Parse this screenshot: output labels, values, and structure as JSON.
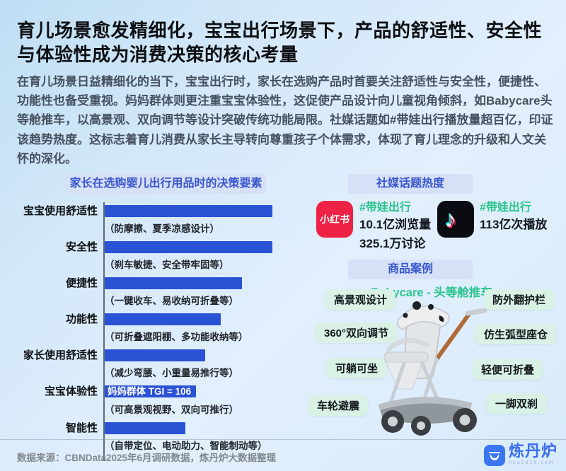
{
  "page": {
    "title": "育儿场景愈发精细化，宝宝出行场景下，产品的舒适性、安全性与体验性成为消费决策的核心考量",
    "intro": "在育儿场景日益精细化的当下，宝宝出行时，家长在选购产品时首要关注舒适性与安全性，便捷性、功能性也备受重视。妈妈群体则更注重宝宝体验性，这促使产品设计向儿童视角倾斜，如Babycare头等舱推车，以高景观、双向调节等设计突破传统功能局限。社媒话题如#带娃出行播放量超百亿，印证该趋势热度。这标志着育儿消费从家长主导转向尊重孩子个体需求，体现了育儿理念的升级和人文关怀的深化。"
  },
  "chart_data": {
    "type": "bar",
    "orientation": "horizontal",
    "title": "家长在选购婴儿出行用品时的决策要素",
    "categories": [
      "宝宝使用舒适性",
      "安全性",
      "便捷性",
      "功能性",
      "家长使用舒适性",
      "宝宝体验性",
      "智能性"
    ],
    "values": [
      100,
      100,
      82,
      69,
      60,
      52,
      48
    ],
    "annotations": [
      "（防摩擦、夏季凉感设计）",
      "（刹车敏捷、安全带牢固等）",
      "（一键收车、易收纳可折叠等）",
      "（可折叠遮阳棚、多功能收纳等）",
      "（减少弯腰、小重量易推行等）",
      "（可高景观视野、双向可推行）",
      "（自带定位、电动助力、智能制动等）"
    ],
    "bar_note": {
      "index": 5,
      "text": "妈妈群体 TGI = 106"
    },
    "bar_color": "#2a52d4",
    "xlim": [
      0,
      100
    ],
    "legend": null,
    "grid": false
  },
  "social": {
    "header": "社媒话题热度",
    "platforms": [
      {
        "name": "小红书",
        "hashtag": "#带娃出行",
        "stat1": "10.1亿浏览量",
        "stat2": "325.1万讨论"
      },
      {
        "name": "抖音",
        "hashtag": "#带娃出行",
        "stat1": "113亿次播放"
      }
    ]
  },
  "product": {
    "header": "商品案例",
    "name": "Babycare - 头等舱推车",
    "features_left": [
      "高景观设计",
      "360°双向调节",
      "可躺可坐",
      "车轮避震"
    ],
    "features_right": [
      "防外翻护栏",
      "仿生弧型座仓",
      "轻便可折叠",
      "一脚双刹"
    ]
  },
  "footer": {
    "source": "数据来源：CBNData2025年6月调研数据，炼丹炉大数据整理",
    "brand": "炼丹炉",
    "brand_sub": "hua1818.com"
  },
  "colors": {
    "bar_blue": "#2a52d4",
    "pill_blue_bg": "#d6e0f7",
    "pill_blue_text": "#3a57cc",
    "hashtag_green": "#2bc48e",
    "feature_green_bg": "#d9f2e5",
    "xiaohongshu_red": "#ee2244",
    "douyin_black": "#0b0b12",
    "brand_blue": "#3b6ef0"
  }
}
